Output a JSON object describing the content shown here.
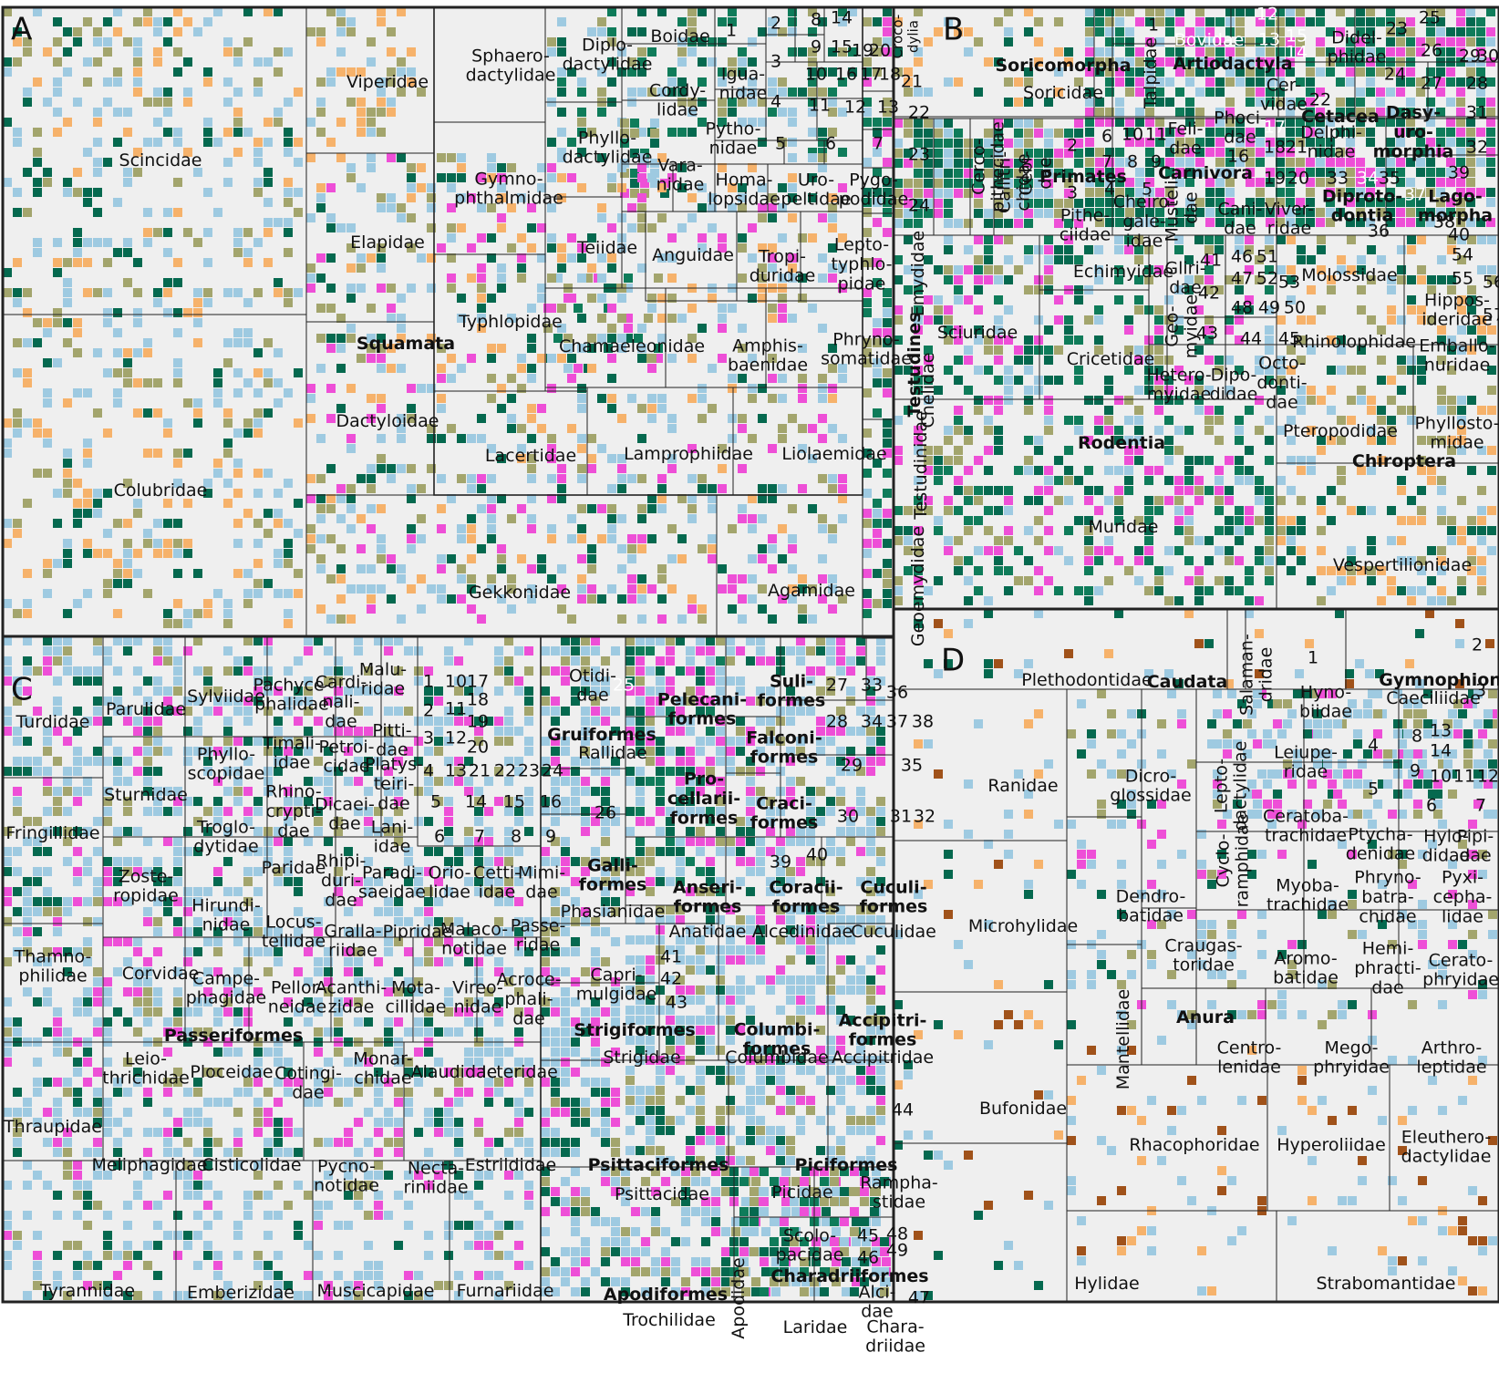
{
  "colors": {
    "background": "#efefef",
    "light_blue": "#9ecae1",
    "dark_green": "#05694f",
    "mid_green": "#0f7c5a",
    "olive": "#a3a56d",
    "orange": "#f6b26b",
    "magenta": "#ee4fd7",
    "blue": "#1a78b4",
    "brown": "#a0521a",
    "line": "#222222",
    "white": "#ffffff"
  },
  "panel_a": {
    "letter": "A",
    "labels": {
      "scincidae": "Scincidae",
      "colubridae": "Colubridae",
      "viperidae": "Viperidae",
      "elapidae": "Elapidae",
      "squamata": "Squamata",
      "dactyloidae": "Dactyloidae",
      "gekkonidae": "Gekkonidae",
      "sphaerodactylidae": "Sphaero-\ndactylidae",
      "gymnophthalmidae": "Gymno-\nphthalmidae",
      "typhlopidae": "Typhlopidae",
      "lacertidae": "Lacertidae",
      "diplodactylidae": "Diplo-\ndactylidae",
      "phyllodactylidae": "Phyllo-\ndactylidae",
      "teiidae": "Teiidae",
      "chamaeleonidae": "Chamaeleonidae",
      "lamprophiidae": "Lamprophiidae",
      "agamidae": "Agamidae",
      "boidae": "Boidae",
      "cordylidae": "Cordy-\nlidae",
      "varanidae": "Vara-\nnidae",
      "anguidae": "Anguidae",
      "iguanidae": "Igua-\nnidae",
      "pythonidae": "Pytho-\nnidae",
      "homalopsidae": "Homa-\nlopsidae",
      "uropeltidae": "Uro-\npeltidae",
      "pygopodidae": "Pygo-\npodidae",
      "tropiduridae": "Tropi-\nduridae",
      "leptotyphlopidae": "Lepto-\ntyphlo-\npidae",
      "amphisbaenidae": "Amphis-\nbaenidae",
      "phrynosomatidae": "Phryno-\nsomatidae",
      "liolaemidae": "Liolaemidae",
      "crocodylia": "Croco-\ndylia",
      "testudines": "Testudines",
      "emydidae": "Emydidae",
      "chelidae": "Chelidae",
      "testudinidae": "Testudinidae",
      "geoemydidae": "Geoemydidae"
    },
    "numbers": [
      "1",
      "2",
      "3",
      "4",
      "5",
      "6",
      "7",
      "8",
      "9",
      "10",
      "11",
      "12",
      "13",
      "14",
      "15",
      "16",
      "17",
      "18",
      "19",
      "20",
      "21",
      "22",
      "23",
      "24"
    ]
  },
  "panel_b": {
    "letter": "B",
    "labels": {
      "soricomorpha": "Soricomorpha",
      "soricidae": "Soricidae",
      "talpidae": "Talpidae",
      "artiodactyla": "Artiodactyla",
      "bovidae": "Bovidae",
      "cervidae": "Cer-\nvidae",
      "didelphidae": "Didel-\nphidae",
      "cetacea": "Cetacea",
      "delphinidae": "Delphi-\nnidae",
      "dasyuromorphia": "Dasy-\nuro-\nmorphia",
      "cercopithecidae": "Cerco-\npithecidae",
      "callitrichidae": "Callitri-\nchidae",
      "cebidae": "Cebi-\ndae",
      "primates": "Primates",
      "pitheciidae": "Pithe-\nciidae",
      "cheirogaleidae": "Cheiro-\ngale-\nidae",
      "carnivora": "Carnivora",
      "felidae": "Feli-\ndae",
      "phocidae": "Phoci-\ndae",
      "mustelidae": "Musteli-\ndae",
      "canidae": "Cani-\ndae",
      "viverridae": "Viver-\nridae",
      "diprotodontia": "Diproto-\ndontia",
      "lagomorpha": "Lago-\nmorpha",
      "echimyidae": "Echimyidae",
      "gliridae": "Gliri-\ndae",
      "geomyidae": "Geo-\nmyidae",
      "molossidae": "Molossidae",
      "hipposideridae": "Hippos-\nideridae",
      "emballonuridae": "Emballo-\nnuridae",
      "rhinolophidae": "Rhinolophidae",
      "sciuridae": "Sciuridae",
      "cricetidae": "Cricetidae",
      "heteromyidae": "Hetero-\nmyidae",
      "dipodidae": "Dipo-\ndidae",
      "octodontidae": "Octo-\ndonti-\ndae",
      "pteropodidae": "Pteropodidae",
      "phyllostomidae": "Phyllosto-\nmidae",
      "rodentia": "Rodentia",
      "chiroptera": "Chiroptera",
      "muridae": "Muridae",
      "vespertilionidae": "Vespertilionidae"
    },
    "numbers": [
      "1",
      "2",
      "3",
      "4",
      "5",
      "6",
      "7",
      "8",
      "9",
      "10",
      "11",
      "12",
      "13",
      "14",
      "15",
      "16",
      "17",
      "18",
      "19",
      "20",
      "21",
      "22",
      "23",
      "24",
      "25",
      "26",
      "27",
      "28",
      "29",
      "30",
      "31",
      "32",
      "33",
      "34",
      "35",
      "36",
      "37",
      "38",
      "39",
      "40",
      "41",
      "42",
      "43",
      "44",
      "45",
      "46",
      "47",
      "48",
      "49",
      "50",
      "51",
      "52",
      "53",
      "54",
      "55",
      "56",
      "57"
    ]
  },
  "panel_c": {
    "letter": "C",
    "labels": {
      "turdidae": "Turdidae",
      "parulidae": "Parulidae",
      "sylviidae": "Sylviidae",
      "pachycephalidae": "Pachyce-\nphalidae",
      "cardinalidae": "Cardi-\nnali-\ndae",
      "maluridae": "Malu-\nridae",
      "pittidae": "Pitti-\ndae",
      "sturnidae": "Sturnidae",
      "phylloscopidae": "Phyllo-\nscopidae",
      "timaliidae": "Timali-\nidae",
      "petroicidae": "Petroi-\ncidae",
      "platysteiridae": "Platys-\nteiri-\ndae",
      "fringillidae": "Fringillidae",
      "troglodytidae": "Troglo-\ndytidae",
      "rhinocryptidae": "Rhino-\ncrypti-\ndae",
      "dicaeidae": "Dicaei-\ndae",
      "laniidae": "Lani-\nidae",
      "zosteropidae": "Zoste-\nropidae",
      "paridae": "Paridae",
      "rhipiduridae": "Rhipi-\nduri-\ndae",
      "paradisaeidae": "Paradi-\nsaeidae",
      "oriolidae": "Orio-\nlidae",
      "cettiidae": "Cetti-\nidae",
      "mimidae": "Mimi-\ndae",
      "hirundinidae": "Hirundi-\nnidae",
      "locustellidae": "Locus-\ntellidae",
      "grallariidae": "Gralla-\nriidae",
      "pipridae": "Pipridae",
      "malaconotidae": "Malaco-\nnotidae",
      "passeridae": "Passe-\nridae",
      "thamnophilidae": "Thamno-\nphilidae",
      "corvidae": "Corvidae",
      "campephagidae": "Campe-\nphagidae",
      "pellorneidae": "Pellor-\nneidae",
      "acanthizidae": "Acanthi-\nzidae",
      "motacillidae": "Mota-\ncillidae",
      "vireonidae": "Vireo-\nnidae",
      "acrocephalidae": "Acroce-\nphali-\ndae",
      "passeriformes": "Passeriformes",
      "leiothrichidae": "Leio-\nthrichidae",
      "ploceidae": "Ploceidae",
      "cotingidae": "Cotingi-\ndae",
      "monarchidae": "Monar-\nchidae",
      "alaudidae": "Alaudidae",
      "icteridae": "Icteridae",
      "thraupidae": "Thraupidae",
      "meliphagidae": "Meliphagidae",
      "cisticolidae": "Cisticolidae",
      "pycnonotidae": "Pycno-\nnotidae",
      "nectariniidae": "Necta-\nriniidae",
      "estrildidae": "Estrildidae",
      "tyrannidae": "Tyrannidae",
      "emberizidae": "Emberizidae",
      "muscicapidae": "Muscicapidae",
      "furnariidae": "Furnariidae",
      "otididae": "Otidi-\ndae",
      "gruiformes": "Gruiformes",
      "rallidae": "Rallidae",
      "galliformes": "Galli-\nformes",
      "phasianidae": "Phasianidae",
      "pelecaniformes": "Pelecani-\nformes",
      "suliformes": "Suli-\nformes",
      "falconiformes": "Falconi-\nformes",
      "procellariiformes": "Pro-\ncellarii-\nformes",
      "craciformes": "Craci-\nformes",
      "anseriformes": "Anseri-\nformes",
      "anatidae": "Anatidae",
      "coraciiformes": "Coracii-\nformes",
      "alcedinidae": "Alcedinidae",
      "cuculiformes": "Cuculi-\nformes",
      "cuculidae": "Cuculidae",
      "caprimulgidae": "Capri-\nmulgidae",
      "strigiformes": "Strigiformes",
      "strigidae": "Strigidae",
      "columbiformes": "Columbi-\nformes",
      "columbidae": "Columbidae",
      "accipitriformes": "Accipitri-\nformes",
      "accipitridae": "Accipitridae",
      "psittaciformes": "Psittaciformes",
      "psittacidae": "Psittacidae",
      "piciformes": "Piciformes",
      "picidae": "Picidae",
      "ramphastidae": "Rampha-\nstidae",
      "apodiformes": "Apodiformes",
      "trochilidae": "Trochilidae",
      "apodidae": "Apodidae",
      "scolopacidae": "Scolo-\npacidae",
      "charadriiformes": "Charadriiformes",
      "alcidae": "Alci-\ndae",
      "laridae": "Laridae",
      "charadriidae": "Chara-\ndriidae"
    },
    "numbers": [
      "1",
      "2",
      "3",
      "4",
      "5",
      "6",
      "7",
      "8",
      "9",
      "10",
      "11",
      "12",
      "13",
      "14",
      "15",
      "16",
      "17",
      "18",
      "19",
      "20",
      "21",
      "22",
      "23",
      "24",
      "25",
      "26",
      "27",
      "28",
      "29",
      "30",
      "31",
      "32",
      "33",
      "34",
      "35",
      "36",
      "37",
      "38",
      "39",
      "40",
      "41",
      "42",
      "43",
      "44",
      "45",
      "46",
      "47",
      "48",
      "49"
    ]
  },
  "panel_d": {
    "letter": "D",
    "labels": {
      "plethodontidae": "Plethodontidae",
      "caudata": "Caudata",
      "salamandridae": "Salaman-\ndridae",
      "hynobiidae": "Hyno-\nbiidae",
      "gymnophiona": "Gymnophiona",
      "caeciliidae": "Caeciliidae",
      "ranidae": "Ranidae",
      "dicroglossidae": "Dicro-\nglossidae",
      "leptodactylidae": "Lepto-\ndactylidae",
      "leiuperidae": "Leiupe-\nridae",
      "microhylidae": "Microhylidae",
      "dendrobatidae": "Dendro-\nbatidae",
      "cycloramphidae": "Cyclo-\nramphidae",
      "ceratobatrachidae": "Ceratoba-\ntrachidae",
      "ptychadenidae": "Ptycha-\ndenidae",
      "hylodidae": "Hylo-\ndidae",
      "pipidae": "Pipi-\ndae",
      "myobatrachidae": "Myoba-\ntrachidae",
      "phrynobatrachidae": "Phryno-\nbatra-\nchidae",
      "pyxicephalidae": "Pyxi-\ncepha-\nlidae",
      "craugastoridae": "Craugas-\ntoridae",
      "aromobatidae": "Aromo-\nbatidae",
      "hemiphractidae": "Hemi-\nphracti-\ndae",
      "ceratophryidae": "Cerato-\nphryidae",
      "mantellidae": "Mantellidae",
      "anura": "Anura",
      "centrolenidae": "Centro-\nlenidae",
      "megophryidae": "Mego-\nphryidae",
      "arthroleptidae": "Arthro-\nleptidae",
      "bufonidae": "Bufonidae",
      "rhacophoridae": "Rhacophoridae",
      "hyperoliidae": "Hyperoliidae",
      "eleutherodactylidae": "Eleuthero-\ndactylidae",
      "hylidae": "Hylidae",
      "strabomantidae": "Strabomantidae"
    },
    "numbers": [
      "1",
      "2",
      "3",
      "4",
      "5",
      "6",
      "7",
      "8",
      "9",
      "10",
      "11",
      "12",
      "13",
      "14"
    ]
  }
}
